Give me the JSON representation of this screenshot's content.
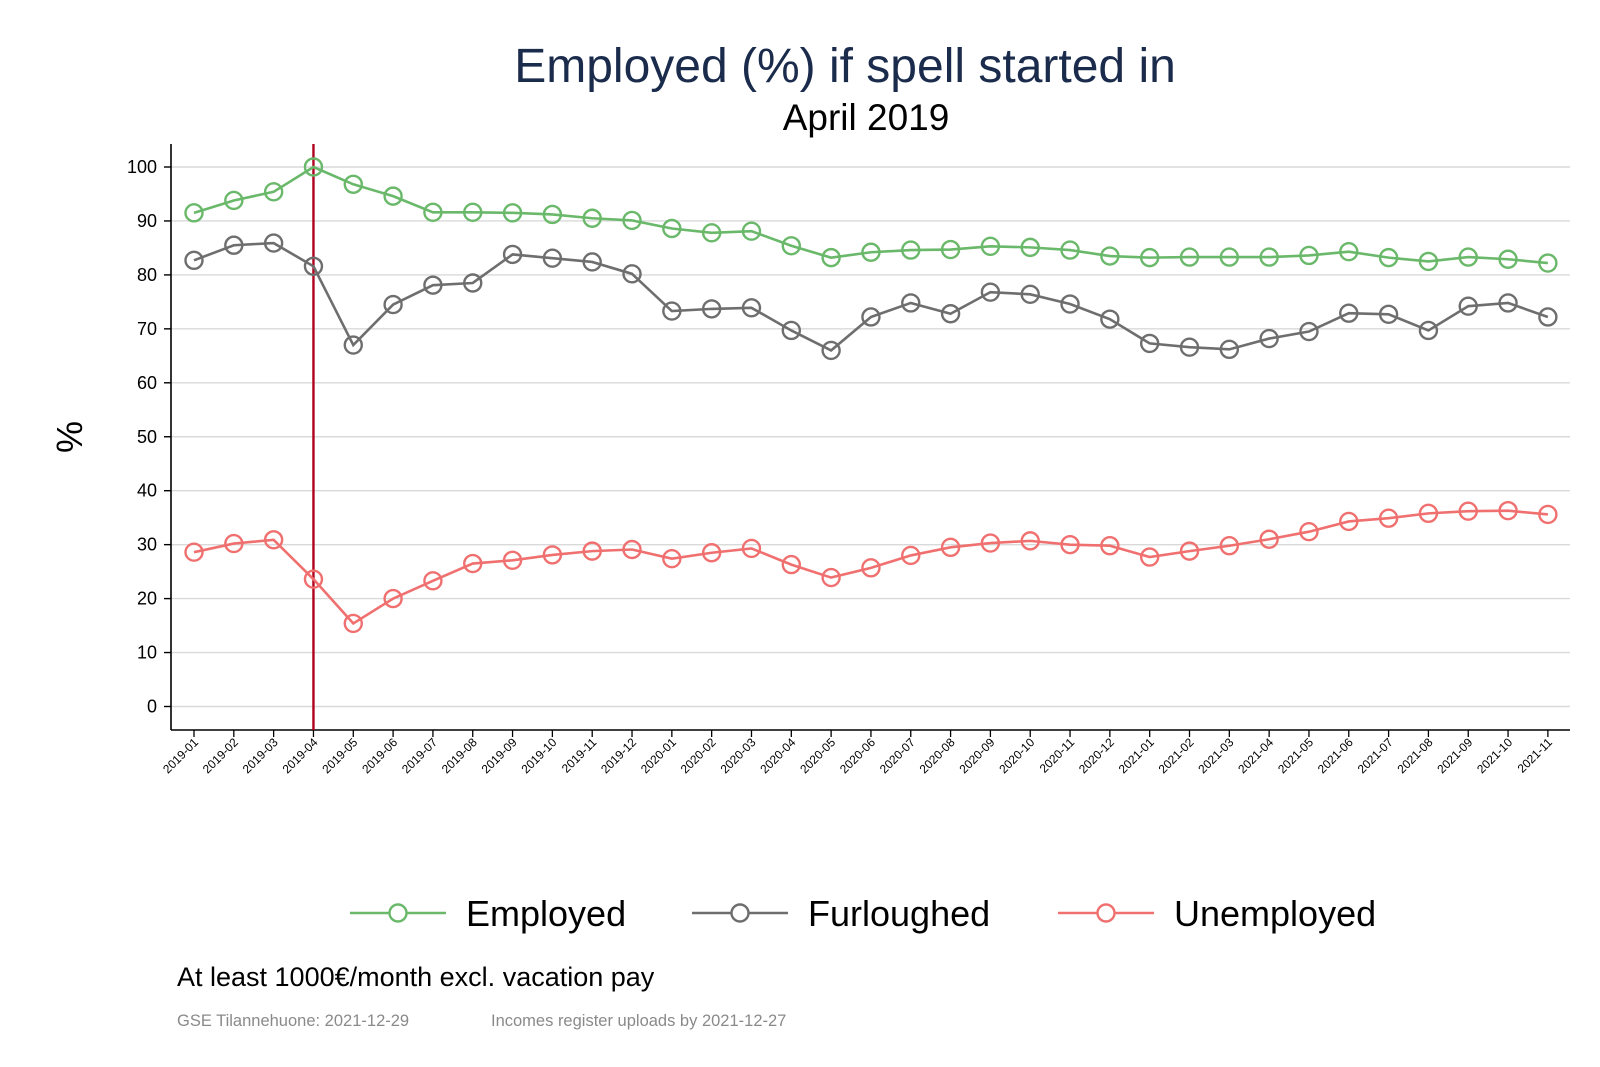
{
  "chart_data": {
    "type": "line",
    "title": "Employed (%) if spell started in",
    "subtitle": "April 2019",
    "xlabel": "",
    "ylabel": "%",
    "ylim": [
      -4,
      104
    ],
    "yticks": [
      0,
      10,
      20,
      30,
      40,
      50,
      60,
      70,
      80,
      90,
      100
    ],
    "grid": "horizontal",
    "legend_position": "bottom",
    "reference_line": {
      "x": "2019-04",
      "color": "#b0001e"
    },
    "categories": [
      "2019-01",
      "2019-02",
      "2019-03",
      "2019-04",
      "2019-05",
      "2019-06",
      "2019-07",
      "2019-08",
      "2019-09",
      "2019-10",
      "2019-11",
      "2019-12",
      "2020-01",
      "2020-02",
      "2020-03",
      "2020-04",
      "2020-05",
      "2020-06",
      "2020-07",
      "2020-08",
      "2020-09",
      "2020-10",
      "2020-11",
      "2020-12",
      "2021-01",
      "2021-02",
      "2021-03",
      "2021-04",
      "2021-05",
      "2021-06",
      "2021-07",
      "2021-08",
      "2021-09",
      "2021-10",
      "2021-11"
    ],
    "series": [
      {
        "name": "Employed",
        "color": "#6ab86a",
        "values": [
          91.5,
          93.8,
          95.4,
          100,
          96.8,
          94.6,
          91.6,
          91.6,
          91.5,
          91.2,
          90.5,
          90.1,
          88.6,
          87.8,
          88.1,
          85.4,
          83.2,
          84.2,
          84.6,
          84.7,
          85.3,
          85.1,
          84.6,
          83.5,
          83.2,
          83.3,
          83.3,
          83.3,
          83.6,
          84.3,
          83.2,
          82.5,
          83.3,
          82.9,
          82.2
        ]
      },
      {
        "name": "Furloughed",
        "color": "#6e6e6e",
        "values": [
          82.7,
          85.5,
          85.9,
          81.6,
          67.0,
          74.5,
          78.1,
          78.5,
          83.8,
          83.1,
          82.4,
          80.2,
          73.3,
          73.7,
          73.9,
          69.7,
          66.0,
          72.2,
          74.8,
          72.8,
          76.8,
          76.4,
          74.6,
          71.8,
          67.3,
          66.6,
          66.2,
          68.2,
          69.5,
          72.9,
          72.7,
          69.7,
          74.2,
          74.8,
          72.2
        ]
      },
      {
        "name": "Unemployed",
        "color": "#f07070",
        "values": [
          28.6,
          30.2,
          30.9,
          23.6,
          15.4,
          20.0,
          23.3,
          26.5,
          27.1,
          28.1,
          28.8,
          29.1,
          27.4,
          28.5,
          29.3,
          26.3,
          23.9,
          25.7,
          28.0,
          29.5,
          30.3,
          30.7,
          30.0,
          29.8,
          27.7,
          28.8,
          29.8,
          31.0,
          32.4,
          34.3,
          34.9,
          35.8,
          36.2,
          36.3,
          35.6
        ]
      }
    ]
  },
  "footer": {
    "note": "At least 1000€/month excl. vacation pay",
    "source_left": "GSE Tilannehuone: 2021-12-29",
    "source_right": "Incomes register uploads by 2021-12-27"
  }
}
